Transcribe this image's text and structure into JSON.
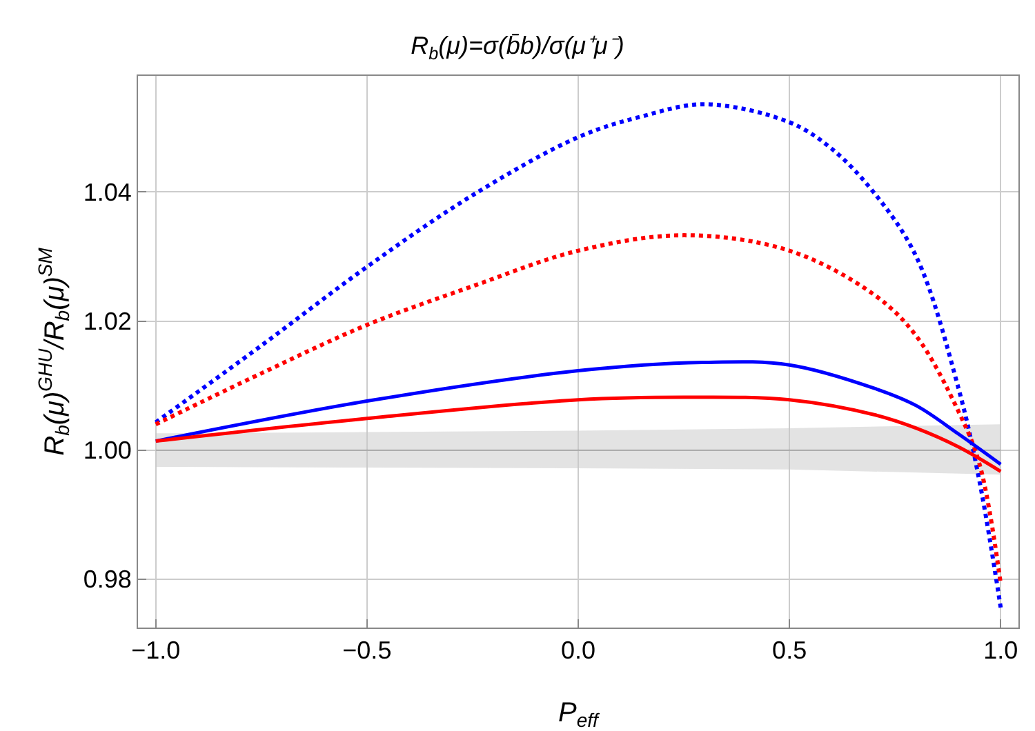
{
  "chart_data": {
    "type": "line",
    "title": "R$_{b}$(μ)=σ(b̄b)/σ(μ⁺μ⁻)",
    "xlabel": "P$_{eff}$",
    "ylabel": "R$_{b}$(μ)$^{GHU}$/R$_{b}$(μ)$^{SM}$",
    "xlim": [
      -1.042,
      1.042
    ],
    "ylim": [
      0.9725,
      1.058
    ],
    "xticks": [
      {
        "value": -1,
        "label": "−1.0"
      },
      {
        "value": -0.5,
        "label": "−0.5"
      },
      {
        "value": 0,
        "label": "0.0"
      },
      {
        "value": 0.5,
        "label": "0.5"
      },
      {
        "value": 1,
        "label": "1.0"
      }
    ],
    "yticks": [
      0.98,
      {
        "value": 1,
        "label": "1.00"
      },
      1.02,
      1.04
    ],
    "grid": true,
    "marker": "none",
    "series": [
      {
        "color": "#999999",
        "x": [
          -1,
          -0.5,
          0,
          0.5,
          1
        ],
        "values": [
          1,
          1,
          1,
          1,
          1
        ],
        "lower": [
          0.9974,
          0.9973,
          0.9972,
          0.997,
          0.9962
        ],
        "upper": [
          1.0026,
          1.0028,
          1.003,
          1.0034,
          1.004
        ],
        "line_style": "solid"
      },
      {
        "color": "#0000ff",
        "line_style": "dotted",
        "x": [
          -1,
          -0.75,
          -0.5,
          -0.25,
          0,
          0.15,
          0.3,
          0.5,
          0.6,
          0.7,
          0.8,
          0.9,
          0.95,
          1
        ],
        "values": [
          1.0043,
          1.0162,
          1.0284,
          1.0395,
          1.0485,
          1.0517,
          1.0536,
          1.0508,
          1.0467,
          1.0399,
          1.03,
          1.0096,
          0.9951,
          0.9756
        ]
      },
      {
        "color": "#ff0000",
        "line_style": "dotted",
        "x": [
          -1,
          -0.75,
          -0.5,
          -0.25,
          0,
          0.25,
          0.5,
          0.7,
          0.8,
          0.9,
          0.95,
          1
        ],
        "values": [
          1.004,
          1.0119,
          1.0194,
          1.0254,
          1.0309,
          1.0333,
          1.0309,
          1.0241,
          1.0177,
          1.006,
          0.9978,
          0.9793
        ]
      },
      {
        "color": "#0000ff",
        "line_style": "solid",
        "x": [
          -1,
          -0.5,
          0,
          0.3,
          0.5,
          0.7,
          0.8,
          0.9,
          1
        ],
        "values": [
          1.0014,
          1.0076,
          1.0123,
          1.0136,
          1.0132,
          1.0096,
          1.0069,
          1.0025,
          0.9978
        ]
      },
      {
        "color": "#ff0000",
        "line_style": "solid",
        "x": [
          -1,
          -0.5,
          0,
          0.25,
          0.5,
          0.7,
          0.8,
          0.9,
          1
        ],
        "values": [
          1.0014,
          1.0049,
          1.0078,
          1.0082,
          1.0078,
          1.0055,
          1.0034,
          1.0005,
          0.9967
        ]
      }
    ]
  }
}
